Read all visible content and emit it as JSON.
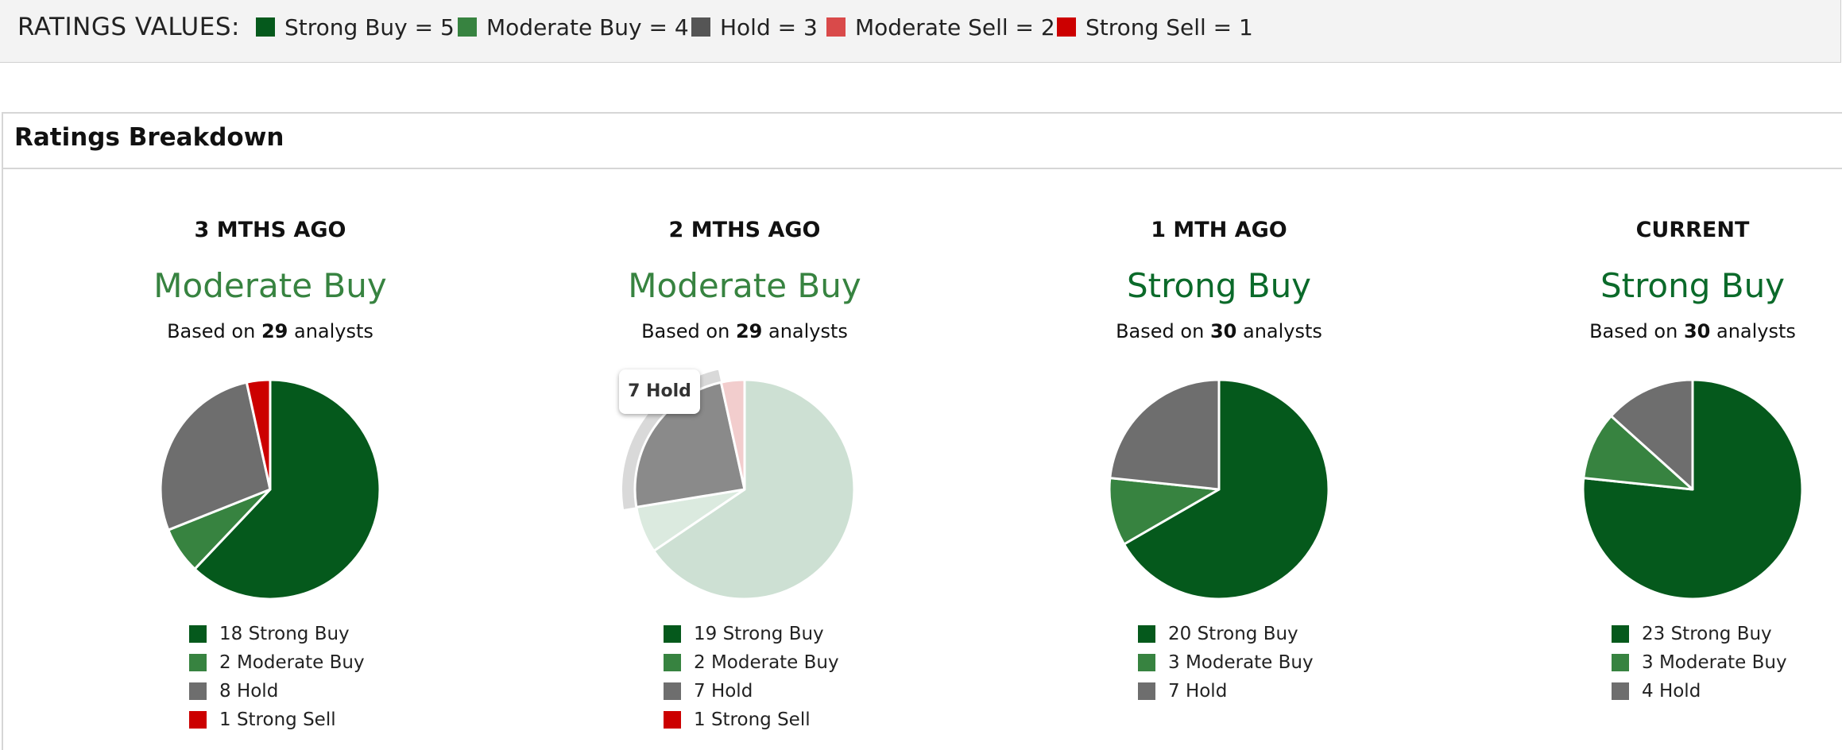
{
  "ratings_values": {
    "title": "RATINGS VALUES:",
    "items": [
      {
        "label": "Strong Buy = 5",
        "color": "#05591c"
      },
      {
        "label": "Moderate Buy = 4",
        "color": "#378340"
      },
      {
        "label": "Hold = 3",
        "color": "#555555"
      },
      {
        "label": "Moderate Sell = 2",
        "color": "#d94a4a"
      },
      {
        "label": "Strong Sell = 1",
        "color": "#cc0000"
      }
    ]
  },
  "breakdown": {
    "title": "Ratings Breakdown",
    "based_prefix": "Based on",
    "based_suffix": "analysts"
  },
  "tooltip": {
    "text": "7 Hold"
  },
  "chart_data": [
    {
      "type": "pie",
      "title": "3 MTHS AGO",
      "consensus": "Moderate Buy",
      "consensus_color": "#378340",
      "analysts": "29",
      "categories": [
        "Strong Buy",
        "Moderate Buy",
        "Hold",
        "Strong Sell"
      ],
      "values": [
        18,
        2,
        8,
        1
      ],
      "colors": [
        "#05591c",
        "#378340",
        "#6e6e6e",
        "#cc0000"
      ],
      "legend": [
        "18 Strong Buy",
        "2 Moderate Buy",
        "8 Hold",
        "1 Strong Sell"
      ],
      "highlighted": null
    },
    {
      "type": "pie",
      "title": "2 MTHS AGO",
      "consensus": "Moderate Buy",
      "consensus_color": "#378340",
      "analysts": "29",
      "categories": [
        "Strong Buy",
        "Moderate Buy",
        "Hold",
        "Strong Sell"
      ],
      "values": [
        19,
        2,
        7,
        1
      ],
      "colors": [
        "#05591c",
        "#378340",
        "#6e6e6e",
        "#cc0000"
      ],
      "legend": [
        "19 Strong Buy",
        "2 Moderate Buy",
        "7 Hold",
        "1 Strong Sell"
      ],
      "highlighted": "Hold"
    },
    {
      "type": "pie",
      "title": "1 MTH AGO",
      "consensus": "Strong Buy",
      "consensus_color": "#0b6a2a",
      "analysts": "30",
      "categories": [
        "Strong Buy",
        "Moderate Buy",
        "Hold"
      ],
      "values": [
        20,
        3,
        7
      ],
      "colors": [
        "#05591c",
        "#378340",
        "#6e6e6e"
      ],
      "legend": [
        "20 Strong Buy",
        "3 Moderate Buy",
        "7 Hold"
      ],
      "highlighted": null
    },
    {
      "type": "pie",
      "title": "CURRENT",
      "consensus": "Strong Buy",
      "consensus_color": "#0b6a2a",
      "analysts": "30",
      "categories": [
        "Strong Buy",
        "Moderate Buy",
        "Hold"
      ],
      "values": [
        23,
        3,
        4
      ],
      "colors": [
        "#05591c",
        "#378340",
        "#6e6e6e"
      ],
      "legend": [
        "23 Strong Buy",
        "3 Moderate Buy",
        "4 Hold"
      ],
      "highlighted": null
    }
  ]
}
